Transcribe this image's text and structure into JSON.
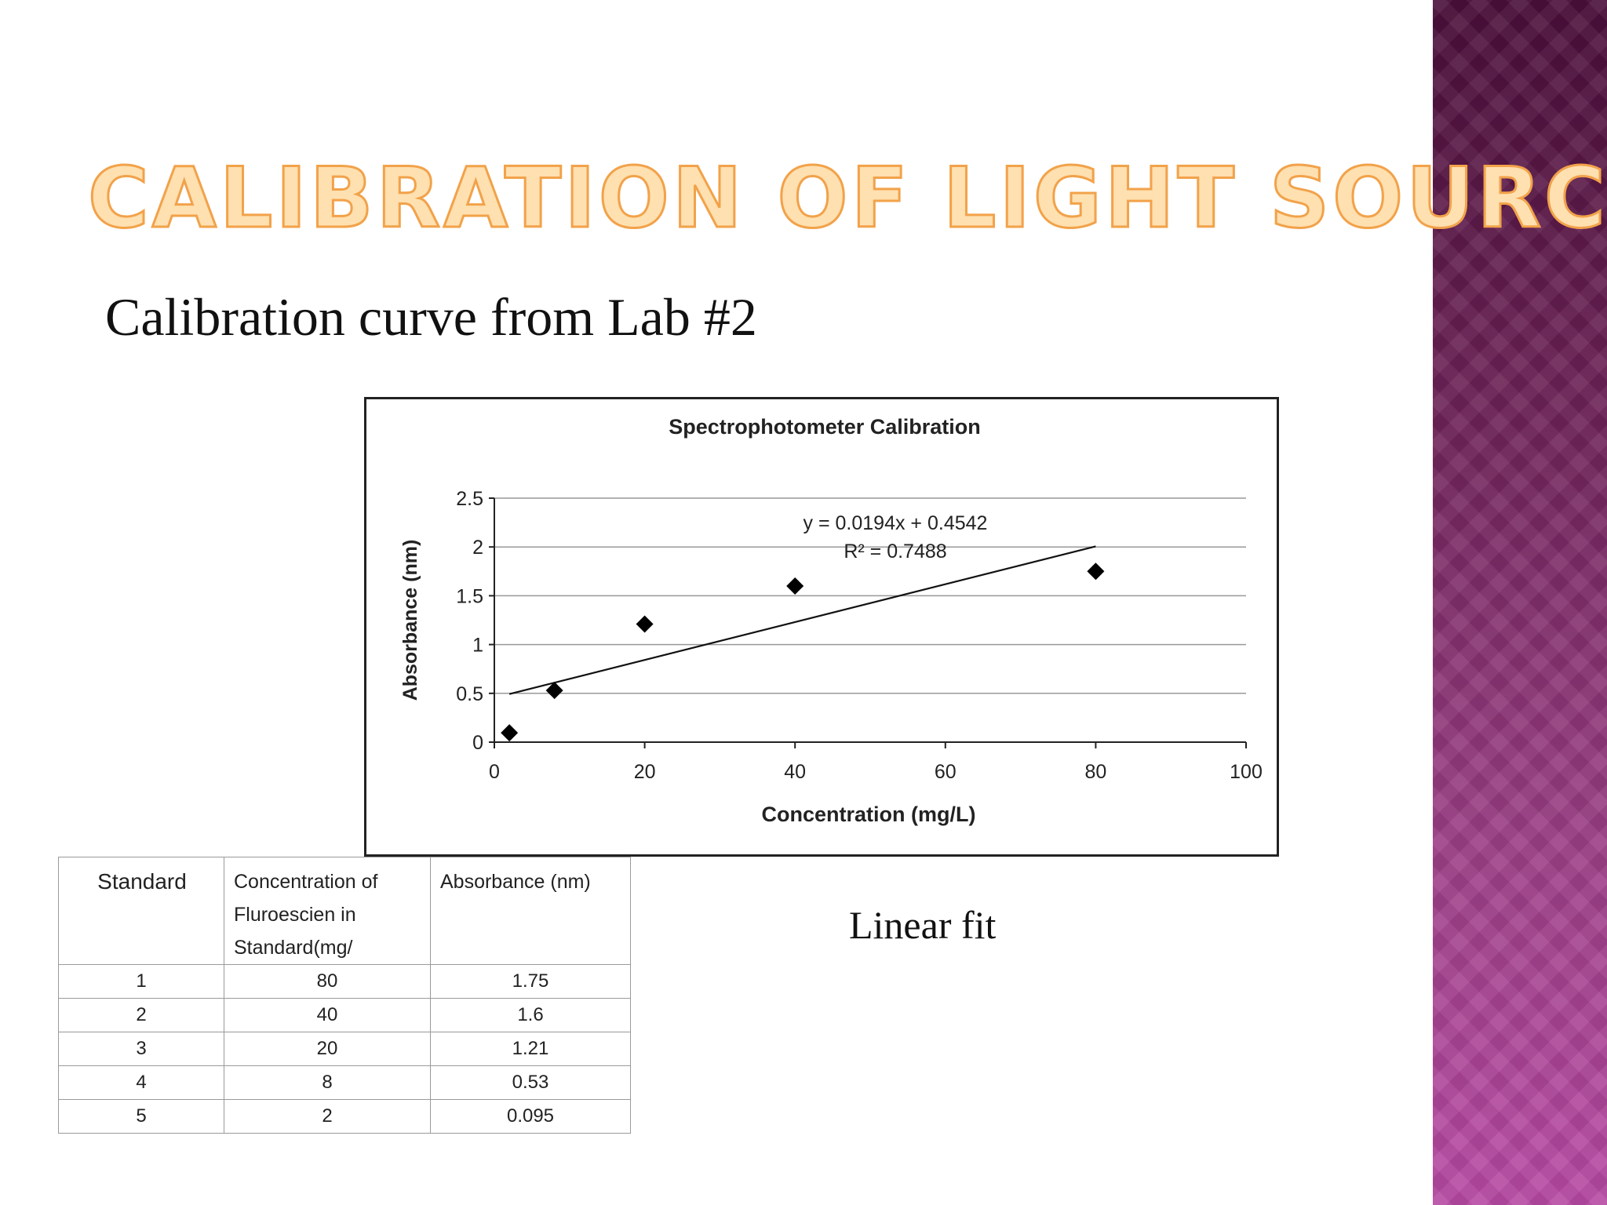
{
  "slide": {
    "title": "Calibration of Light Source",
    "subtitle": "Calibration curve from Lab #2",
    "caption": "Linear fit",
    "accent_color": "#f2a24a",
    "sidebar_color": "#9c3f86"
  },
  "chart_data": {
    "type": "scatter",
    "title": "Spectrophotometer  Calibration",
    "xlabel": "Concentration (mg/L)",
    "ylabel": "Absorbance (nm)",
    "xlim": [
      0,
      100
    ],
    "ylim": [
      0,
      2.5
    ],
    "xticks": [
      "0",
      "20",
      "40",
      "60",
      "80",
      "100"
    ],
    "yticks": [
      "0",
      "0.5",
      "1",
      "1.5",
      "2",
      "2.5"
    ],
    "grid": true,
    "points": [
      {
        "x": 80,
        "y": 1.75
      },
      {
        "x": 40,
        "y": 1.6
      },
      {
        "x": 20,
        "y": 1.21
      },
      {
        "x": 8,
        "y": 0.53
      },
      {
        "x": 2,
        "y": 0.095
      }
    ],
    "trendline": {
      "slope": 0.0194,
      "intercept": 0.4542,
      "x_range": [
        2,
        80
      ]
    },
    "equation": "y = 0.0194x + 0.4542",
    "r_squared": "R² = 0.7488"
  },
  "table": {
    "headers": [
      "Standard",
      "Concentration of Fluroescien in Standard(mg/",
      "Absorbance (nm)"
    ],
    "header_lines": [
      [
        "Standard"
      ],
      [
        "Concentration  of",
        "Fluroescien  in",
        "Standard(mg/"
      ],
      [
        "Absorbance  (nm)"
      ]
    ],
    "rows": [
      [
        "1",
        "80",
        "1.75"
      ],
      [
        "2",
        "40",
        "1.6"
      ],
      [
        "3",
        "20",
        "1.21"
      ],
      [
        "4",
        "8",
        "0.53"
      ],
      [
        "5",
        "2",
        "0.095"
      ]
    ]
  }
}
